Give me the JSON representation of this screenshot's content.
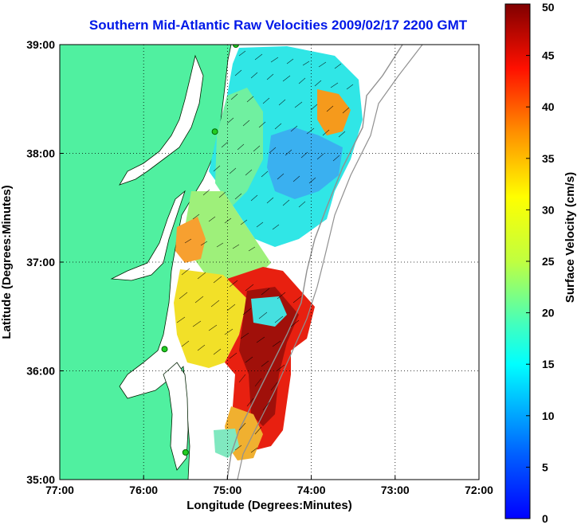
{
  "chart_data": {
    "type": "heatmap",
    "title": "Southern Mid-Atlantic Raw Velocities 2009/02/17 2200 GMT",
    "xlabel": "Longitude (Degrees:Minutes)",
    "ylabel": "Latitude (Degrees:Minutes)",
    "colorbar_label": "Surface Velocity (cm/s)",
    "xlim": [
      -77,
      -72
    ],
    "ylim": [
      35,
      39
    ],
    "x_ticks": [
      {
        "value": -77,
        "label": "77:00"
      },
      {
        "value": -76,
        "label": "76:00"
      },
      {
        "value": -75,
        "label": "75:00"
      },
      {
        "value": -74,
        "label": "74:00"
      },
      {
        "value": -73,
        "label": "73:00"
      },
      {
        "value": -72,
        "label": "72:00"
      }
    ],
    "y_ticks": [
      {
        "value": 39,
        "label": "39:00"
      },
      {
        "value": 38,
        "label": "38:00"
      },
      {
        "value": 37,
        "label": "37:00"
      },
      {
        "value": 36,
        "label": "36:00"
      },
      {
        "value": 35,
        "label": "35:00"
      }
    ],
    "colorbar_range": [
      0,
      50
    ],
    "colorbar_ticks": [
      0,
      5,
      10,
      15,
      20,
      25,
      30,
      35,
      40,
      45,
      50
    ],
    "colorscale": "jet",
    "grid": "dotted",
    "regions": [
      {
        "name": "north-cyan",
        "lon": -74.4,
        "lat": 38.1,
        "velocity": 12
      },
      {
        "name": "central-cyan",
        "lon": -74.5,
        "lat": 37.5,
        "velocity": 14
      },
      {
        "name": "offshore-orange",
        "lon": -74.1,
        "lat": 38.5,
        "velocity": 30
      },
      {
        "name": "coastal-orange",
        "lon": -75.6,
        "lat": 37.2,
        "velocity": 33
      },
      {
        "name": "southern-red",
        "lon": -74.2,
        "lat": 36.2,
        "velocity": 48
      },
      {
        "name": "southern-yellow",
        "lon": -75.1,
        "lat": 36.4,
        "velocity": 26
      }
    ],
    "stations": [
      {
        "lon": -74.9,
        "lat": 39.0
      },
      {
        "lon": -75.15,
        "lat": 38.2
      },
      {
        "lon": -75.75,
        "lat": 36.2
      },
      {
        "lon": -75.5,
        "lat": 35.25
      }
    ]
  },
  "colors": {
    "title": "#0018e8",
    "land": "#50f0a0",
    "station": "#22cc22"
  }
}
